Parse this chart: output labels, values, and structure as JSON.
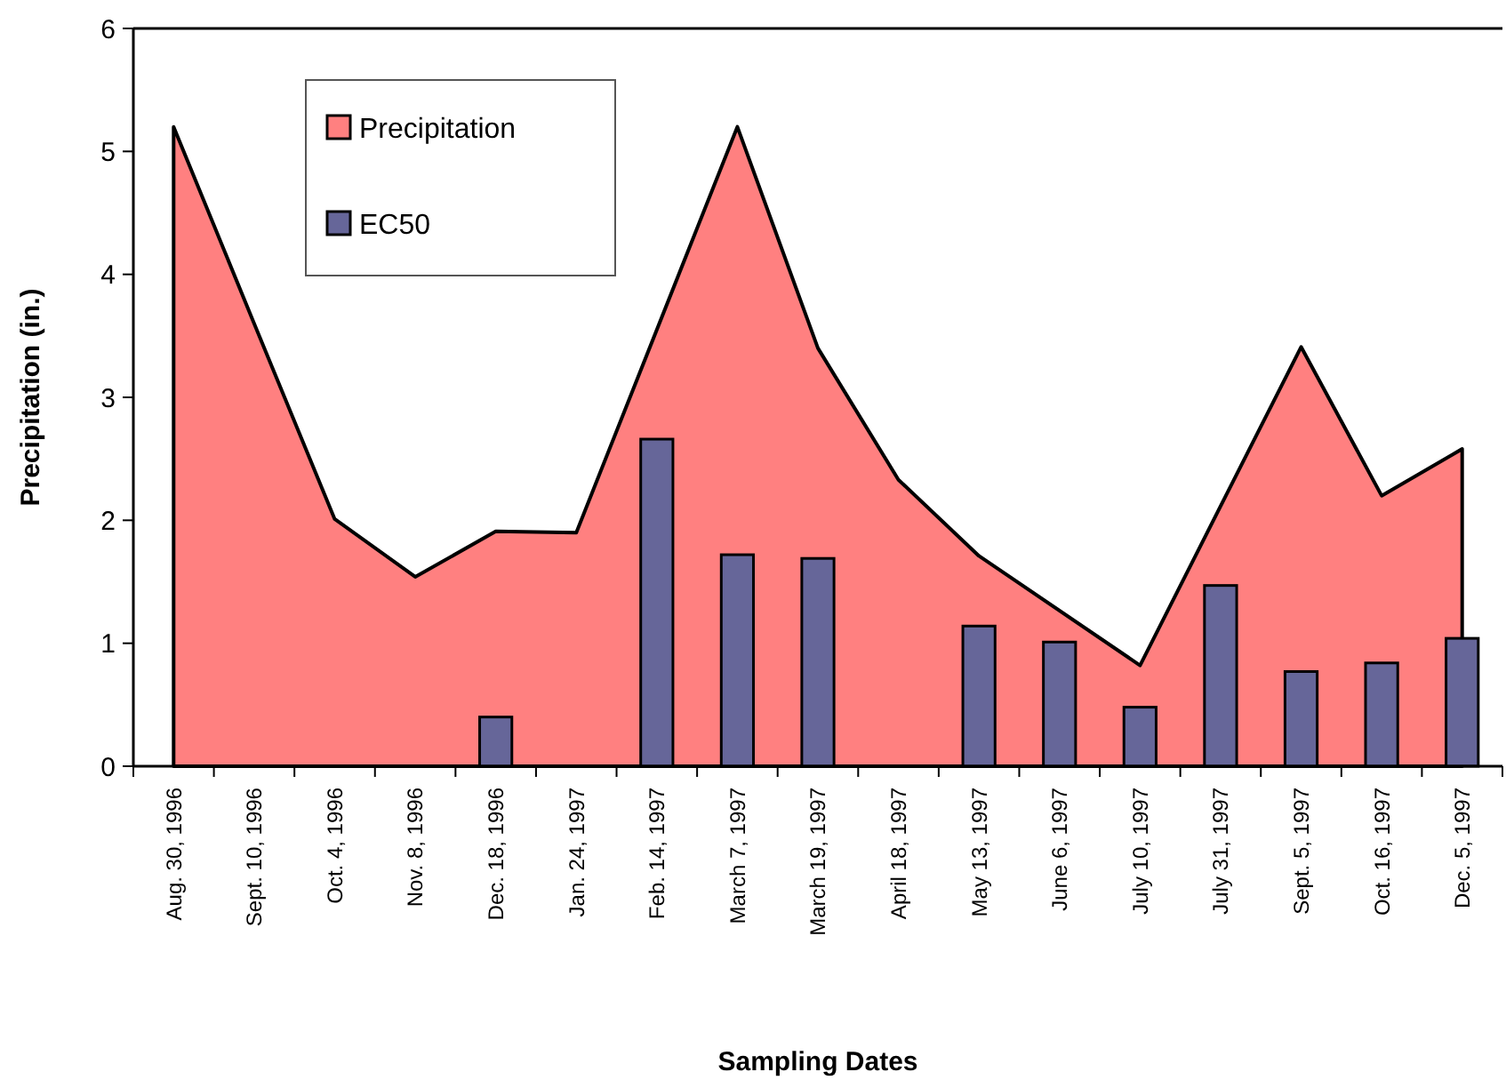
{
  "chart_data": {
    "type": "bar",
    "xlabel": "Sampling Dates",
    "ylabel": "Precipitation (in.)",
    "categories": [
      "Aug. 30, 1996",
      "Sept. 10, 1996",
      "Oct. 4, 1996",
      "Nov. 8, 1996",
      "Dec. 18, 1996",
      "Jan. 24, 1997",
      "Feb. 14, 1997",
      "March 7, 1997",
      "March 19, 1997",
      "April 18, 1997",
      "May 13, 1997",
      "June 6, 1997",
      "July 10, 1997",
      "July 31, 1997",
      "Sept. 5, 1997",
      "Oct. 16, 1997",
      "Dec. 5, 1997"
    ],
    "series": [
      {
        "name": "Precipitation",
        "type": "area",
        "color": "#ff8080",
        "values": [
          5.2,
          3.6,
          2.01,
          1.54,
          1.91,
          1.9,
          null,
          5.2,
          3.4,
          2.33,
          1.71,
          null,
          0.82,
          null,
          3.41,
          2.2,
          2.58
        ]
      },
      {
        "name": "EC50",
        "color": "#666699",
        "values": [
          null,
          null,
          null,
          null,
          0.4,
          null,
          2.66,
          1.72,
          1.69,
          null,
          1.14,
          1.01,
          0.48,
          1.47,
          0.77,
          0.84,
          1.04
        ]
      }
    ],
    "ylim": [
      0,
      6
    ],
    "yticks": [
      0,
      1,
      2,
      3,
      4,
      5,
      6
    ],
    "grid": false,
    "legend": "top left"
  }
}
